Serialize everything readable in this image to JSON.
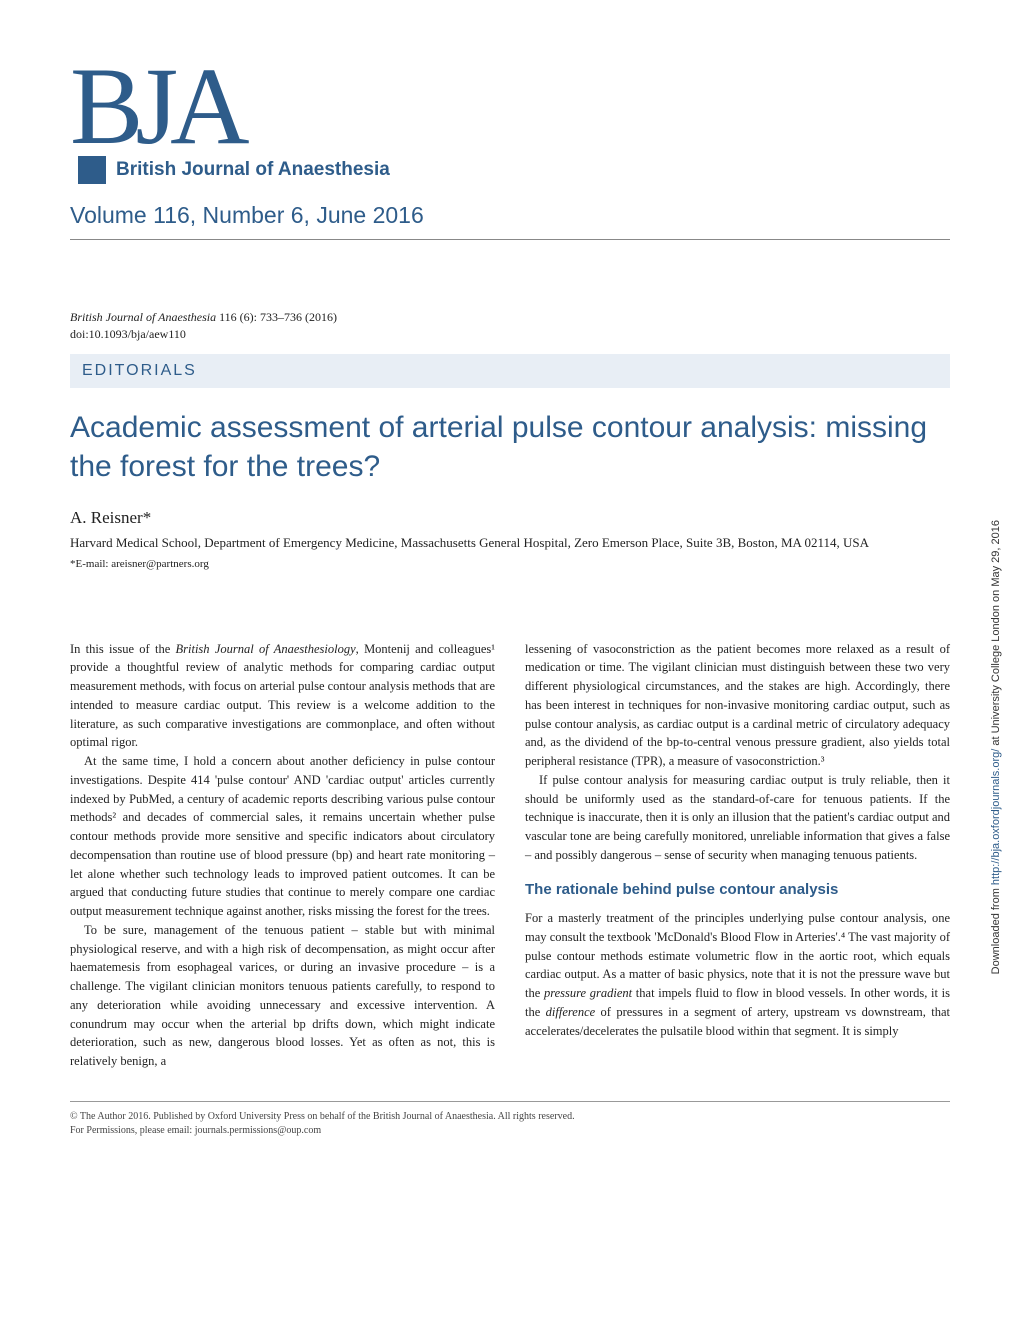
{
  "colors": {
    "brand": "#2e5c8a",
    "section_bg": "#e8eef5",
    "text": "#222222",
    "footer": "#444444"
  },
  "logo": {
    "letters": "BJA",
    "subtitle": "British Journal of Anaesthesia"
  },
  "volume_line": "Volume 116, Number 6, June 2016",
  "citation": {
    "journal": "British Journal of Anaesthesia",
    "ref": " 116 (6): 733–736 (2016)"
  },
  "doi": "doi:10.1093/bja/aew110",
  "section_label": "EDITORIALS",
  "title": "Academic assessment of arterial pulse contour analysis: missing the forest for the trees?",
  "author": "A. Reisner*",
  "affiliation": "Harvard Medical School, Department of Emergency Medicine, Massachusetts General Hospital, Zero Emerson Place, Suite 3B, Boston, MA 02114, USA",
  "email": "*E-mail: areisner@partners.org",
  "body": {
    "left": {
      "p1_prefix": "In this issue of the ",
      "p1_italic": "British Journal of Anaesthesiology",
      "p1_suffix": ", Montenij and colleagues¹ provide a thoughtful review of analytic methods for comparing cardiac output measurement methods, with focus on arterial pulse contour analysis methods that are intended to measure cardiac output. This review is a welcome addition to the literature, as such comparative investigations are commonplace, and often without optimal rigor.",
      "p2": "At the same time, I hold a concern about another deficiency in pulse contour investigations. Despite 414 'pulse contour' AND 'cardiac output' articles currently indexed by PubMed, a century of academic reports describing various pulse contour methods² and decades of commercial sales, it remains uncertain whether pulse contour methods provide more sensitive and specific indicators about circulatory decompensation than routine use of blood pressure (bp) and heart rate monitoring – let alone whether such technology leads to improved patient outcomes. It can be argued that conducting future studies that continue to merely compare one cardiac output measurement technique against another, risks missing the forest for the trees.",
      "p3": "To be sure, management of the tenuous patient – stable but with minimal physiological reserve, and with a high risk of decompensation, as might occur after haematemesis from esophageal varices, or during an invasive procedure – is a challenge. The vigilant clinician monitors tenuous patients carefully, to respond to any deterioration while avoiding unnecessary and excessive intervention. A conundrum may occur when the arterial bp drifts down, which might indicate deterioration, such as new, dangerous blood losses. Yet as often as not, this is relatively benign, a"
    },
    "right": {
      "p1": "lessening of vasoconstriction as the patient becomes more relaxed as a result of medication or time. The vigilant clinician must distinguish between these two very different physiological circumstances, and the stakes are high. Accordingly, there has been interest in techniques for non-invasive monitoring cardiac output, such as pulse contour analysis, as cardiac output is a cardinal metric of circulatory adequacy and, as the dividend of the bp-to-central venous pressure gradient, also yields total peripheral resistance (TPR), a measure of vasoconstriction.³",
      "p2": "If pulse contour analysis for measuring cardiac output is truly reliable, then it should be uniformly used as the standard-of-care for tenuous patients. If the technique is inaccurate, then it is only an illusion that the patient's cardiac output and vascular tone are being carefully monitored, unreliable information that gives a false – and possibly dangerous – sense of security when managing tenuous patients.",
      "subheading": "The rationale behind pulse contour analysis",
      "p3_prefix": "For a masterly treatment of the principles underlying pulse contour analysis, one may consult the textbook 'McDonald's Blood Flow in Arteries'.⁴ The vast majority of pulse contour methods estimate volumetric flow in the aortic root, which equals cardiac output. As a matter of basic physics, note that it is not the pressure wave but the ",
      "p3_i1": "pressure gradient",
      "p3_mid": " that impels fluid to flow in blood vessels. In other words, it is the ",
      "p3_i2": "difference",
      "p3_suffix": " of pressures in a segment of artery, upstream vs downstream, that accelerates/decelerates the pulsatile blood within that segment. It is simply"
    }
  },
  "footer": {
    "line1": "© The Author 2016. Published by Oxford University Press on behalf of the British Journal of Anaesthesia. All rights reserved.",
    "line2": "For Permissions, please email: journals.permissions@oup.com"
  },
  "sidebar": {
    "prefix": "Downloaded from ",
    "link": "http://bja.oxfordjournals.org/",
    "suffix": " at University College London on May 29, 2016"
  }
}
